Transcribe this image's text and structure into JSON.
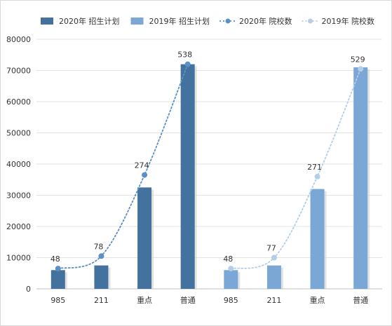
{
  "chart_data": {
    "type": "bar",
    "categories": [
      "985",
      "211",
      "重点",
      "普通",
      "985",
      "211",
      "重点",
      "普通"
    ],
    "ylim": [
      0,
      80000
    ],
    "yticks": [
      0,
      10000,
      20000,
      30000,
      40000,
      50000,
      60000,
      70000,
      80000
    ],
    "grid": true,
    "legend_position": "top",
    "series": [
      {
        "name": "2020年 招生计划",
        "kind": "bar",
        "color": "#44729e",
        "values": [
          6000,
          7500,
          32500,
          72000,
          null,
          null,
          null,
          null
        ]
      },
      {
        "name": "2019年 招生计划",
        "kind": "bar",
        "color": "#7aa7d6",
        "values": [
          null,
          null,
          null,
          null,
          6000,
          7500,
          32000,
          71000
        ]
      },
      {
        "name": "2020年 院校数",
        "kind": "line",
        "color": "#5b8fc7",
        "values": [
          6500,
          10500,
          36500,
          72000,
          null,
          null,
          null,
          null
        ],
        "labels": [
          "48",
          "78",
          "274",
          "538",
          null,
          null,
          null,
          null
        ]
      },
      {
        "name": "2019年 院校数",
        "kind": "line",
        "color": "#b4cde9",
        "values": [
          null,
          null,
          null,
          null,
          6500,
          10000,
          36000,
          70500
        ],
        "labels": [
          null,
          null,
          null,
          null,
          "48",
          "77",
          "271",
          "529"
        ]
      }
    ]
  }
}
